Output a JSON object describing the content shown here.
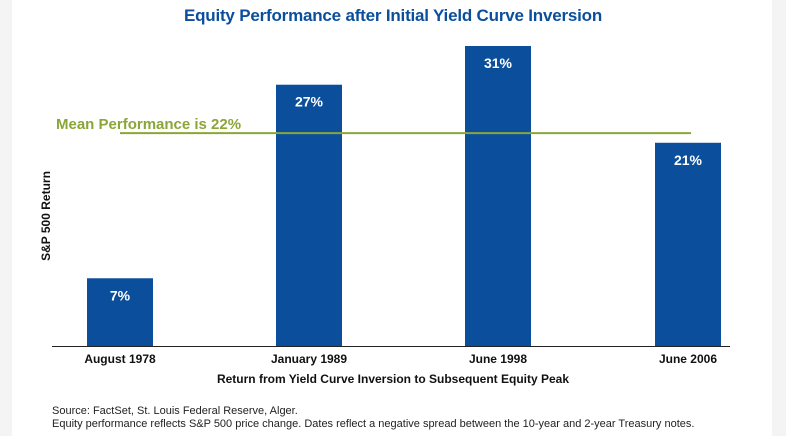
{
  "colors": {
    "bar": "#0b4f9c",
    "title": "#0b4f9c",
    "mean_line": "#8aa638",
    "axis": "#222222"
  },
  "chart_data": {
    "type": "bar",
    "title": "Equity Performance after Initial Yield Curve Inversion",
    "xlabel": "Return from Yield Curve Inversion to Subsequent Equity Peak",
    "ylabel": "S&P 500 Return",
    "categories": [
      "August 1978",
      "January 1989",
      "June 1998",
      "June 2006"
    ],
    "values": [
      7,
      27,
      31,
      21
    ],
    "data_labels": [
      "7%",
      "27%",
      "31%",
      "21%"
    ],
    "ylim": [
      0,
      31
    ],
    "grid": false,
    "legend": "none",
    "reference_line": {
      "value": 22,
      "label": "Mean Performance is 22%"
    }
  },
  "source": {
    "line1": "Source: FactSet, St. Louis Federal Reserve, Alger.",
    "line2": "Equity performance reflects S&P 500 price change.  Dates reflect a negative spread between the 10-year and 2-year Treasury notes."
  }
}
